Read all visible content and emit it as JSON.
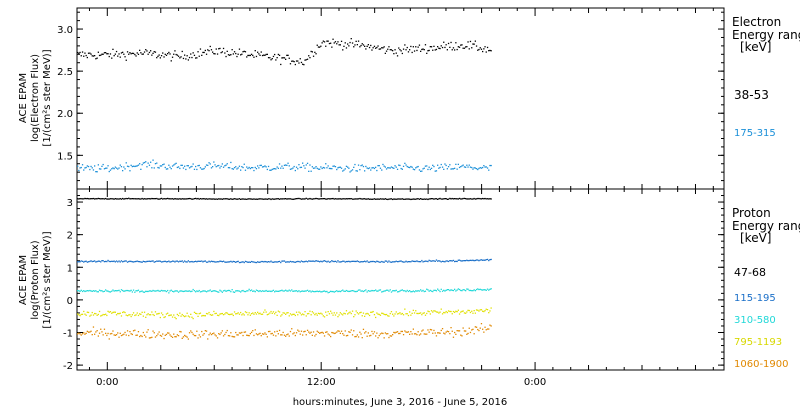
{
  "chart_data": [
    {
      "type": "scatter",
      "title": "",
      "ylabel_lines": [
        "ACE EPAM",
        "log(Electron Flux)",
        "[1/(cm²s ster MeV)]"
      ],
      "ylim": [
        1.1,
        3.25
      ],
      "yticks": [
        1.5,
        2.0,
        2.5,
        3.0
      ],
      "ytick_labels": [
        "1.5",
        "2.0",
        "2.5",
        "3.0"
      ],
      "legend_title": [
        "Electron",
        "Energy ranges",
        "[keV]"
      ],
      "series": [
        {
          "name": "38-53",
          "color": "#000000",
          "x": [
            0.0,
            2.0,
            4.0,
            6.0,
            8.0,
            10.0,
            11.0,
            12.0,
            14.0,
            16.0,
            18.0,
            20.0,
            21.5
          ],
          "y": [
            2.7,
            2.72,
            2.68,
            2.75,
            2.7,
            2.65,
            2.62,
            2.85,
            2.82,
            2.75,
            2.78,
            2.82,
            2.76
          ]
        },
        {
          "name": "175-315",
          "color": "#1a8fd8",
          "x": [
            0.0,
            2.0,
            4.0,
            6.0,
            8.0,
            10.0,
            12.0,
            14.0,
            16.0,
            18.0,
            20.0,
            21.5
          ],
          "y": [
            1.35,
            1.4,
            1.37,
            1.38,
            1.36,
            1.37,
            1.36,
            1.35,
            1.36,
            1.35,
            1.37,
            1.35
          ]
        }
      ]
    },
    {
      "type": "scatter",
      "title": "",
      "ylabel_lines": [
        "ACE EPAM",
        "log(Proton Flux)",
        "[1/(cm²s ster MeV)]"
      ],
      "ylim": [
        -2.15,
        3.4
      ],
      "yticks": [
        -2,
        -1,
        0,
        1,
        2,
        3
      ],
      "ytick_labels": [
        "-2",
        "-1",
        "0",
        "1",
        "2",
        "3"
      ],
      "legend_title": [
        "Proton",
        "Energy ranges",
        "[keV]"
      ],
      "series": [
        {
          "name": "47-68",
          "color": "#000000",
          "x": [
            0.0,
            4.0,
            8.0,
            12.0,
            16.0,
            20.0,
            21.5
          ],
          "y": [
            3.12,
            3.12,
            3.11,
            3.12,
            3.11,
            3.12,
            3.12
          ]
        },
        {
          "name": "115-195",
          "color": "#1a6fc8",
          "x": [
            0.0,
            4.0,
            8.0,
            12.0,
            16.0,
            20.0,
            21.5
          ],
          "y": [
            1.2,
            1.2,
            1.18,
            1.2,
            1.19,
            1.22,
            1.25
          ]
        },
        {
          "name": "310-580",
          "color": "#20d8d8",
          "x": [
            0.0,
            4.0,
            8.0,
            12.0,
            16.0,
            20.0,
            21.5
          ],
          "y": [
            0.3,
            0.28,
            0.3,
            0.28,
            0.3,
            0.32,
            0.35
          ]
        },
        {
          "name": "795-1193",
          "color": "#e0e000",
          "x": [
            0.0,
            4.0,
            8.0,
            12.0,
            16.0,
            20.0,
            21.5
          ],
          "y": [
            -0.4,
            -0.45,
            -0.4,
            -0.42,
            -0.4,
            -0.35,
            -0.3
          ]
        },
        {
          "name": "1060-1900",
          "color": "#e08800",
          "x": [
            0.0,
            4.0,
            8.0,
            12.0,
            16.0,
            20.0,
            21.5
          ],
          "y": [
            -1.0,
            -1.05,
            -1.02,
            -1.0,
            -1.02,
            -0.95,
            -0.85
          ]
        }
      ]
    }
  ],
  "x_axis": {
    "range": [
      -1.7,
      34.6
    ],
    "ticks": [
      0,
      12,
      24
    ],
    "tick_labels": [
      "0:00",
      "12:00",
      "0:00"
    ],
    "label": "hours:minutes,  June  3, 2016 - June  5, 2016"
  },
  "colors": {
    "axis": "#000000",
    "background": "#ffffff"
  }
}
